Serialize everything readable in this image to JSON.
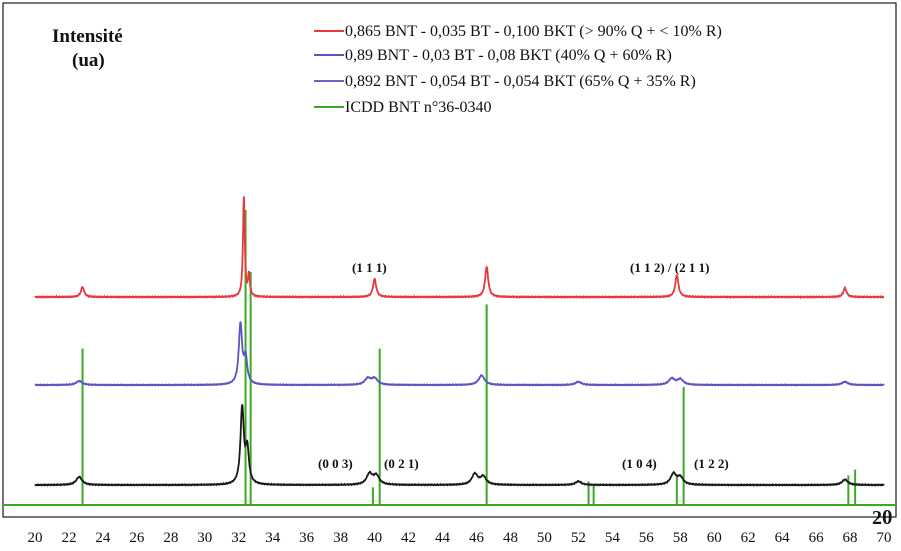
{
  "chart_data": {
    "type": "line",
    "ylabel_lines": [
      "Intensité",
      "(ua)"
    ],
    "xlabel": "2θ",
    "xlim": [
      20,
      70
    ],
    "x_ticks": [
      20,
      22,
      24,
      26,
      28,
      30,
      32,
      34,
      36,
      38,
      40,
      42,
      44,
      46,
      48,
      50,
      52,
      54,
      56,
      58,
      60,
      62,
      64,
      66,
      68,
      70
    ],
    "legend_position": "top-right",
    "grid": false,
    "series": [
      {
        "name": "0,865 BNT - 0,035 BT - 0,100 BKT (> 90% Q + < 10% R)",
        "color": "#e8383d",
        "peaks": [
          [
            22.8,
            10
          ],
          [
            32.3,
            100
          ],
          [
            32.6,
            22
          ],
          [
            40.0,
            18
          ],
          [
            46.6,
            30
          ],
          [
            57.8,
            22
          ],
          [
            67.7,
            9
          ]
        ]
      },
      {
        "name": "0,89 BNT - 0,03 BT - 0,08 BKT  (40% Q + 60% R)",
        "color": "#5a55c4",
        "peaks": [
          [
            22.6,
            5
          ],
          [
            32.1,
            75
          ],
          [
            32.4,
            32
          ],
          [
            39.6,
            8
          ],
          [
            40.0,
            8
          ],
          [
            46.3,
            12
          ],
          [
            52.0,
            4
          ],
          [
            57.5,
            8
          ],
          [
            58.0,
            7
          ],
          [
            67.7,
            4
          ]
        ]
      },
      {
        "name": "0,892 BNT - 0,054 BT - 0,054 BKT (65% Q + 35% R)",
        "color": "#6b66c6",
        "peaks": [
          [
            22.6,
            9
          ],
          [
            32.2,
            85
          ],
          [
            32.5,
            38
          ],
          [
            39.7,
            12
          ],
          [
            40.1,
            10
          ],
          [
            45.9,
            12
          ],
          [
            46.4,
            9
          ],
          [
            52.0,
            4
          ],
          [
            57.6,
            12
          ],
          [
            58.0,
            8
          ],
          [
            67.7,
            6
          ]
        ]
      },
      {
        "name": "ICDD BNT n°36-0340",
        "color": "#3aaa22",
        "sticks": [
          [
            22.8,
            53
          ],
          [
            32.4,
            100
          ],
          [
            32.7,
            79
          ],
          [
            39.9,
            6
          ],
          [
            40.3,
            53
          ],
          [
            46.6,
            68
          ],
          [
            52.6,
            8
          ],
          [
            52.9,
            7
          ],
          [
            57.8,
            10
          ],
          [
            58.2,
            40
          ],
          [
            67.9,
            10
          ],
          [
            68.3,
            12
          ]
        ]
      }
    ],
    "annotations": [
      "(1 1 1)",
      "(1 1 2) / (2 1 1)",
      "(0 0 3)",
      "(0 2 1)",
      "(1 0 4)",
      "(1 2 2)"
    ]
  }
}
